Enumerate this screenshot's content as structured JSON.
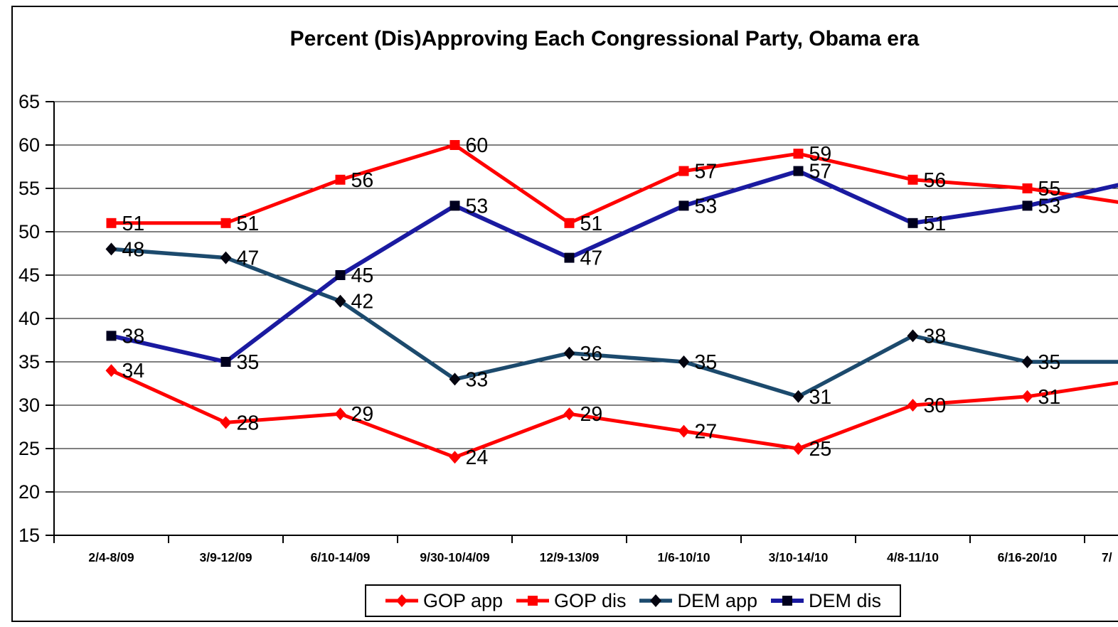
{
  "title": "Percent (Dis)Approving Each Congressional Party, Obama era",
  "colors": {
    "gop": "#FF0000",
    "dem_app_line": "#1C4A6D",
    "dem_dis_line": "#1A1AA0",
    "dem_app_marker": "#050510",
    "dem_dis_marker": "#00001E",
    "axis": "#000000",
    "grid": "#000000",
    "text": "#000000",
    "background": "#FFFFFF"
  },
  "chart_data": {
    "type": "line",
    "title": "Percent (Dis)Approving Each Congressional Party, Obama era",
    "categories": [
      "2/4-8/09",
      "3/9-12/09",
      "6/10-14/09",
      "9/30-10/4/09",
      "12/9-13/09",
      "1/6-10/10",
      "3/10-14/10",
      "4/8-11/10",
      "6/16-20/10"
    ],
    "partial_next_category": "7/",
    "series": [
      {
        "name": "GOP app",
        "color": "#FF0000",
        "marker": "diamond",
        "marker_color": "#FF0000",
        "line_width": 5,
        "values": [
          34,
          28,
          29,
          24,
          29,
          27,
          25,
          30,
          31
        ],
        "edge_continuation_value": 33
      },
      {
        "name": "GOP dis",
        "color": "#FF0000",
        "marker": "square",
        "marker_color": "#FF0000",
        "line_width": 5,
        "values": [
          51,
          51,
          56,
          60,
          51,
          57,
          59,
          56,
          55
        ],
        "edge_continuation_value": 53
      },
      {
        "name": "DEM app",
        "color": "#1C4A6D",
        "marker": "diamond",
        "marker_color": "#050510",
        "line_width": 5.5,
        "values": [
          48,
          47,
          42,
          33,
          36,
          35,
          31,
          38,
          35
        ],
        "edge_continuation_value": 35
      },
      {
        "name": "DEM dis",
        "color": "#1A1AA0",
        "marker": "square",
        "marker_color": "#00001E",
        "line_width": 6,
        "values": [
          38,
          35,
          45,
          53,
          47,
          53,
          57,
          51,
          53
        ],
        "edge_continuation_value": 56
      }
    ],
    "ylim": [
      15,
      65
    ],
    "yticks": [
      65,
      60,
      55,
      50,
      45,
      40,
      35,
      30,
      25,
      20,
      15
    ],
    "grid": "horizontal",
    "data_labels": true,
    "legend_position": "bottom-center",
    "legend": [
      "GOP app",
      "GOP dis",
      "DEM app",
      "DEM dis"
    ]
  }
}
